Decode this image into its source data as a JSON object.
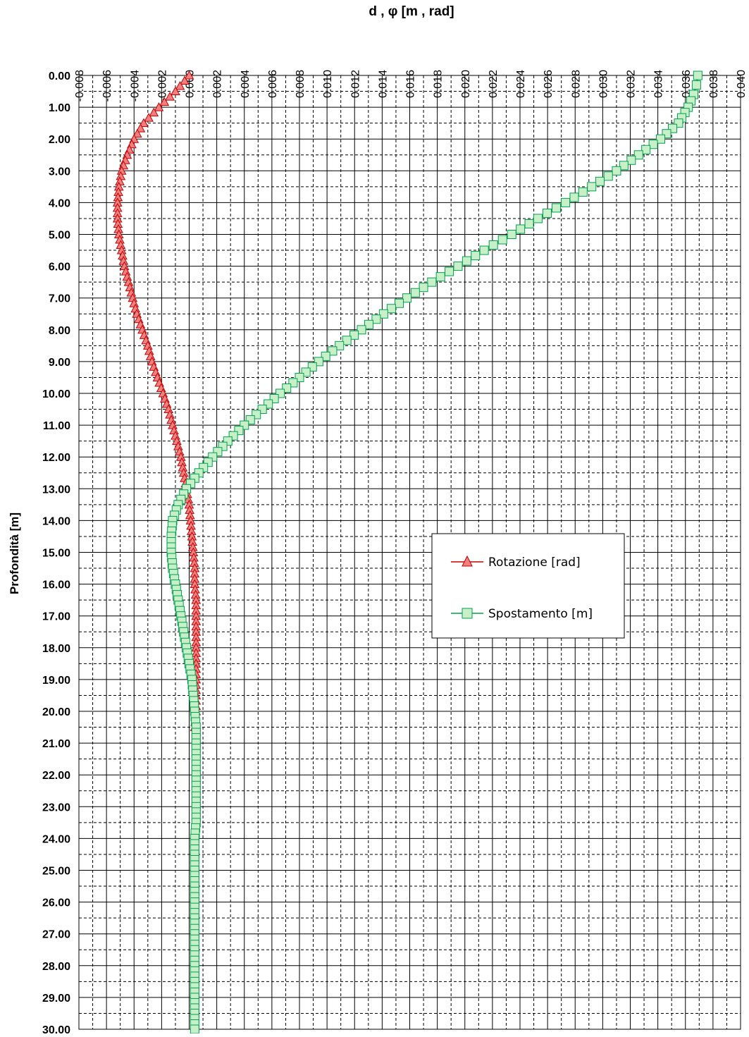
{
  "chart_data": {
    "type": "line",
    "title": "d , φ [m , rad]",
    "xlabel": "",
    "ylabel": "Profondità [m]",
    "xlim": [
      -0.008,
      0.04
    ],
    "ylim": [
      0,
      30
    ],
    "y_inverted": true,
    "x_axis_position": "top",
    "x_ticks": [
      "-0.008",
      "-0.006",
      "-0.004",
      "-0.002",
      "0.000",
      "0.002",
      "0.004",
      "0.006",
      "0.008",
      "0.010",
      "0.012",
      "0.014",
      "0.016",
      "0.018",
      "0.020",
      "0.022",
      "0.024",
      "0.026",
      "0.028",
      "0.030",
      "0.032",
      "0.034",
      "0.036",
      "0.038",
      "0.040"
    ],
    "y_ticks": [
      "0.00",
      "1.00",
      "2.00",
      "3.00",
      "4.00",
      "5.00",
      "6.00",
      "7.00",
      "8.00",
      "9.00",
      "10.00",
      "11.00",
      "12.00",
      "13.00",
      "14.00",
      "15.00",
      "16.00",
      "17.00",
      "18.00",
      "19.00",
      "20.00",
      "21.00",
      "22.00",
      "23.00",
      "24.00",
      "25.00",
      "26.00",
      "27.00",
      "28.00",
      "29.00",
      "30.00"
    ],
    "grid": true,
    "legend_position": "right-middle",
    "series": [
      {
        "name": "Rotazione [rad]",
        "marker": "triangle",
        "line_color": "#c00000",
        "marker_fill": "#f08080",
        "marker_stroke": "#c00000",
        "points": [
          [
            0.0,
            0.0
          ],
          [
            -0.001,
            0.5
          ],
          [
            -0.0022,
            1.0
          ],
          [
            -0.0033,
            1.5
          ],
          [
            -0.004,
            2.0
          ],
          [
            -0.0045,
            2.5
          ],
          [
            -0.0049,
            3.0
          ],
          [
            -0.0051,
            3.5
          ],
          [
            -0.0052,
            4.0
          ],
          [
            -0.0052,
            4.5
          ],
          [
            -0.0051,
            5.0
          ],
          [
            -0.0049,
            5.5
          ],
          [
            -0.0047,
            6.0
          ],
          [
            -0.0044,
            6.5
          ],
          [
            -0.0041,
            7.0
          ],
          [
            -0.0038,
            7.5
          ],
          [
            -0.0034,
            8.0
          ],
          [
            -0.003,
            8.5
          ],
          [
            -0.0027,
            9.0
          ],
          [
            -0.0023,
            9.5
          ],
          [
            -0.0019,
            10.0
          ],
          [
            -0.0015,
            10.5
          ],
          [
            -0.0012,
            11.0
          ],
          [
            -0.0009,
            11.5
          ],
          [
            -0.0006,
            12.0
          ],
          [
            -0.0004,
            12.5
          ],
          [
            -0.0002,
            13.0
          ],
          [
            0.0,
            13.5
          ],
          [
            0.0001,
            14.0
          ],
          [
            0.0002,
            14.5
          ],
          [
            0.0003,
            15.0
          ],
          [
            0.0004,
            15.5
          ],
          [
            0.0004,
            16.0
          ],
          [
            0.0005,
            16.5
          ],
          [
            0.0005,
            17.0
          ],
          [
            0.0005,
            17.5
          ],
          [
            0.0005,
            18.0
          ],
          [
            0.0005,
            18.5
          ],
          [
            0.0005,
            19.0
          ],
          [
            0.0005,
            19.5
          ],
          [
            0.0005,
            20.0
          ],
          [
            0.0004,
            20.5
          ]
        ]
      },
      {
        "name": "Spostamento [m]",
        "marker": "square",
        "line_color": "#00a050",
        "marker_fill": "#c8f0c8",
        "marker_stroke": "#00a050",
        "points": [
          [
            0.0369,
            0.0
          ],
          [
            0.0368,
            0.3
          ],
          [
            0.0366,
            0.6
          ],
          [
            0.0362,
            1.0
          ],
          [
            0.0355,
            1.5
          ],
          [
            0.0342,
            2.0
          ],
          [
            0.0326,
            2.5
          ],
          [
            0.031,
            3.0
          ],
          [
            0.0292,
            3.5
          ],
          [
            0.0273,
            4.0
          ],
          [
            0.0253,
            4.5
          ],
          [
            0.0234,
            5.0
          ],
          [
            0.0214,
            5.5
          ],
          [
            0.0195,
            6.0
          ],
          [
            0.0176,
            6.5
          ],
          [
            0.0158,
            7.0
          ],
          [
            0.0141,
            7.5
          ],
          [
            0.0125,
            8.0
          ],
          [
            0.0109,
            8.5
          ],
          [
            0.0094,
            9.0
          ],
          [
            0.008,
            9.5
          ],
          [
            0.0066,
            10.0
          ],
          [
            0.0053,
            10.5
          ],
          [
            0.004,
            11.0
          ],
          [
            0.0028,
            11.5
          ],
          [
            0.0017,
            12.0
          ],
          [
            0.0007,
            12.5
          ],
          [
            -0.0002,
            13.0
          ],
          [
            -0.0008,
            13.5
          ],
          [
            -0.0012,
            14.0
          ],
          [
            -0.0013,
            14.5
          ],
          [
            -0.0013,
            15.0
          ],
          [
            -0.0012,
            15.5
          ],
          [
            -0.001,
            16.0
          ],
          [
            -0.0008,
            16.5
          ],
          [
            -0.0006,
            17.0
          ],
          [
            -0.0004,
            17.5
          ],
          [
            -0.0002,
            18.0
          ],
          [
            0.0,
            18.5
          ],
          [
            0.0002,
            19.0
          ],
          [
            0.0003,
            19.5
          ],
          [
            0.0004,
            20.0
          ],
          [
            0.0005,
            20.5
          ],
          [
            0.0005,
            21.0
          ],
          [
            0.0005,
            21.5
          ],
          [
            0.0005,
            22.0
          ],
          [
            0.0005,
            22.5
          ],
          [
            0.0005,
            23.0
          ],
          [
            0.0005,
            23.5
          ],
          [
            0.0004,
            24.0
          ],
          [
            0.0004,
            24.5
          ],
          [
            0.0004,
            25.0
          ],
          [
            0.0004,
            25.5
          ],
          [
            0.0004,
            26.0
          ],
          [
            0.0004,
            26.5
          ],
          [
            0.0004,
            27.0
          ],
          [
            0.0004,
            27.5
          ],
          [
            0.0004,
            28.0
          ],
          [
            0.0004,
            28.5
          ],
          [
            0.0004,
            29.0
          ],
          [
            0.0004,
            29.5
          ],
          [
            0.0004,
            30.0
          ]
        ]
      }
    ]
  }
}
